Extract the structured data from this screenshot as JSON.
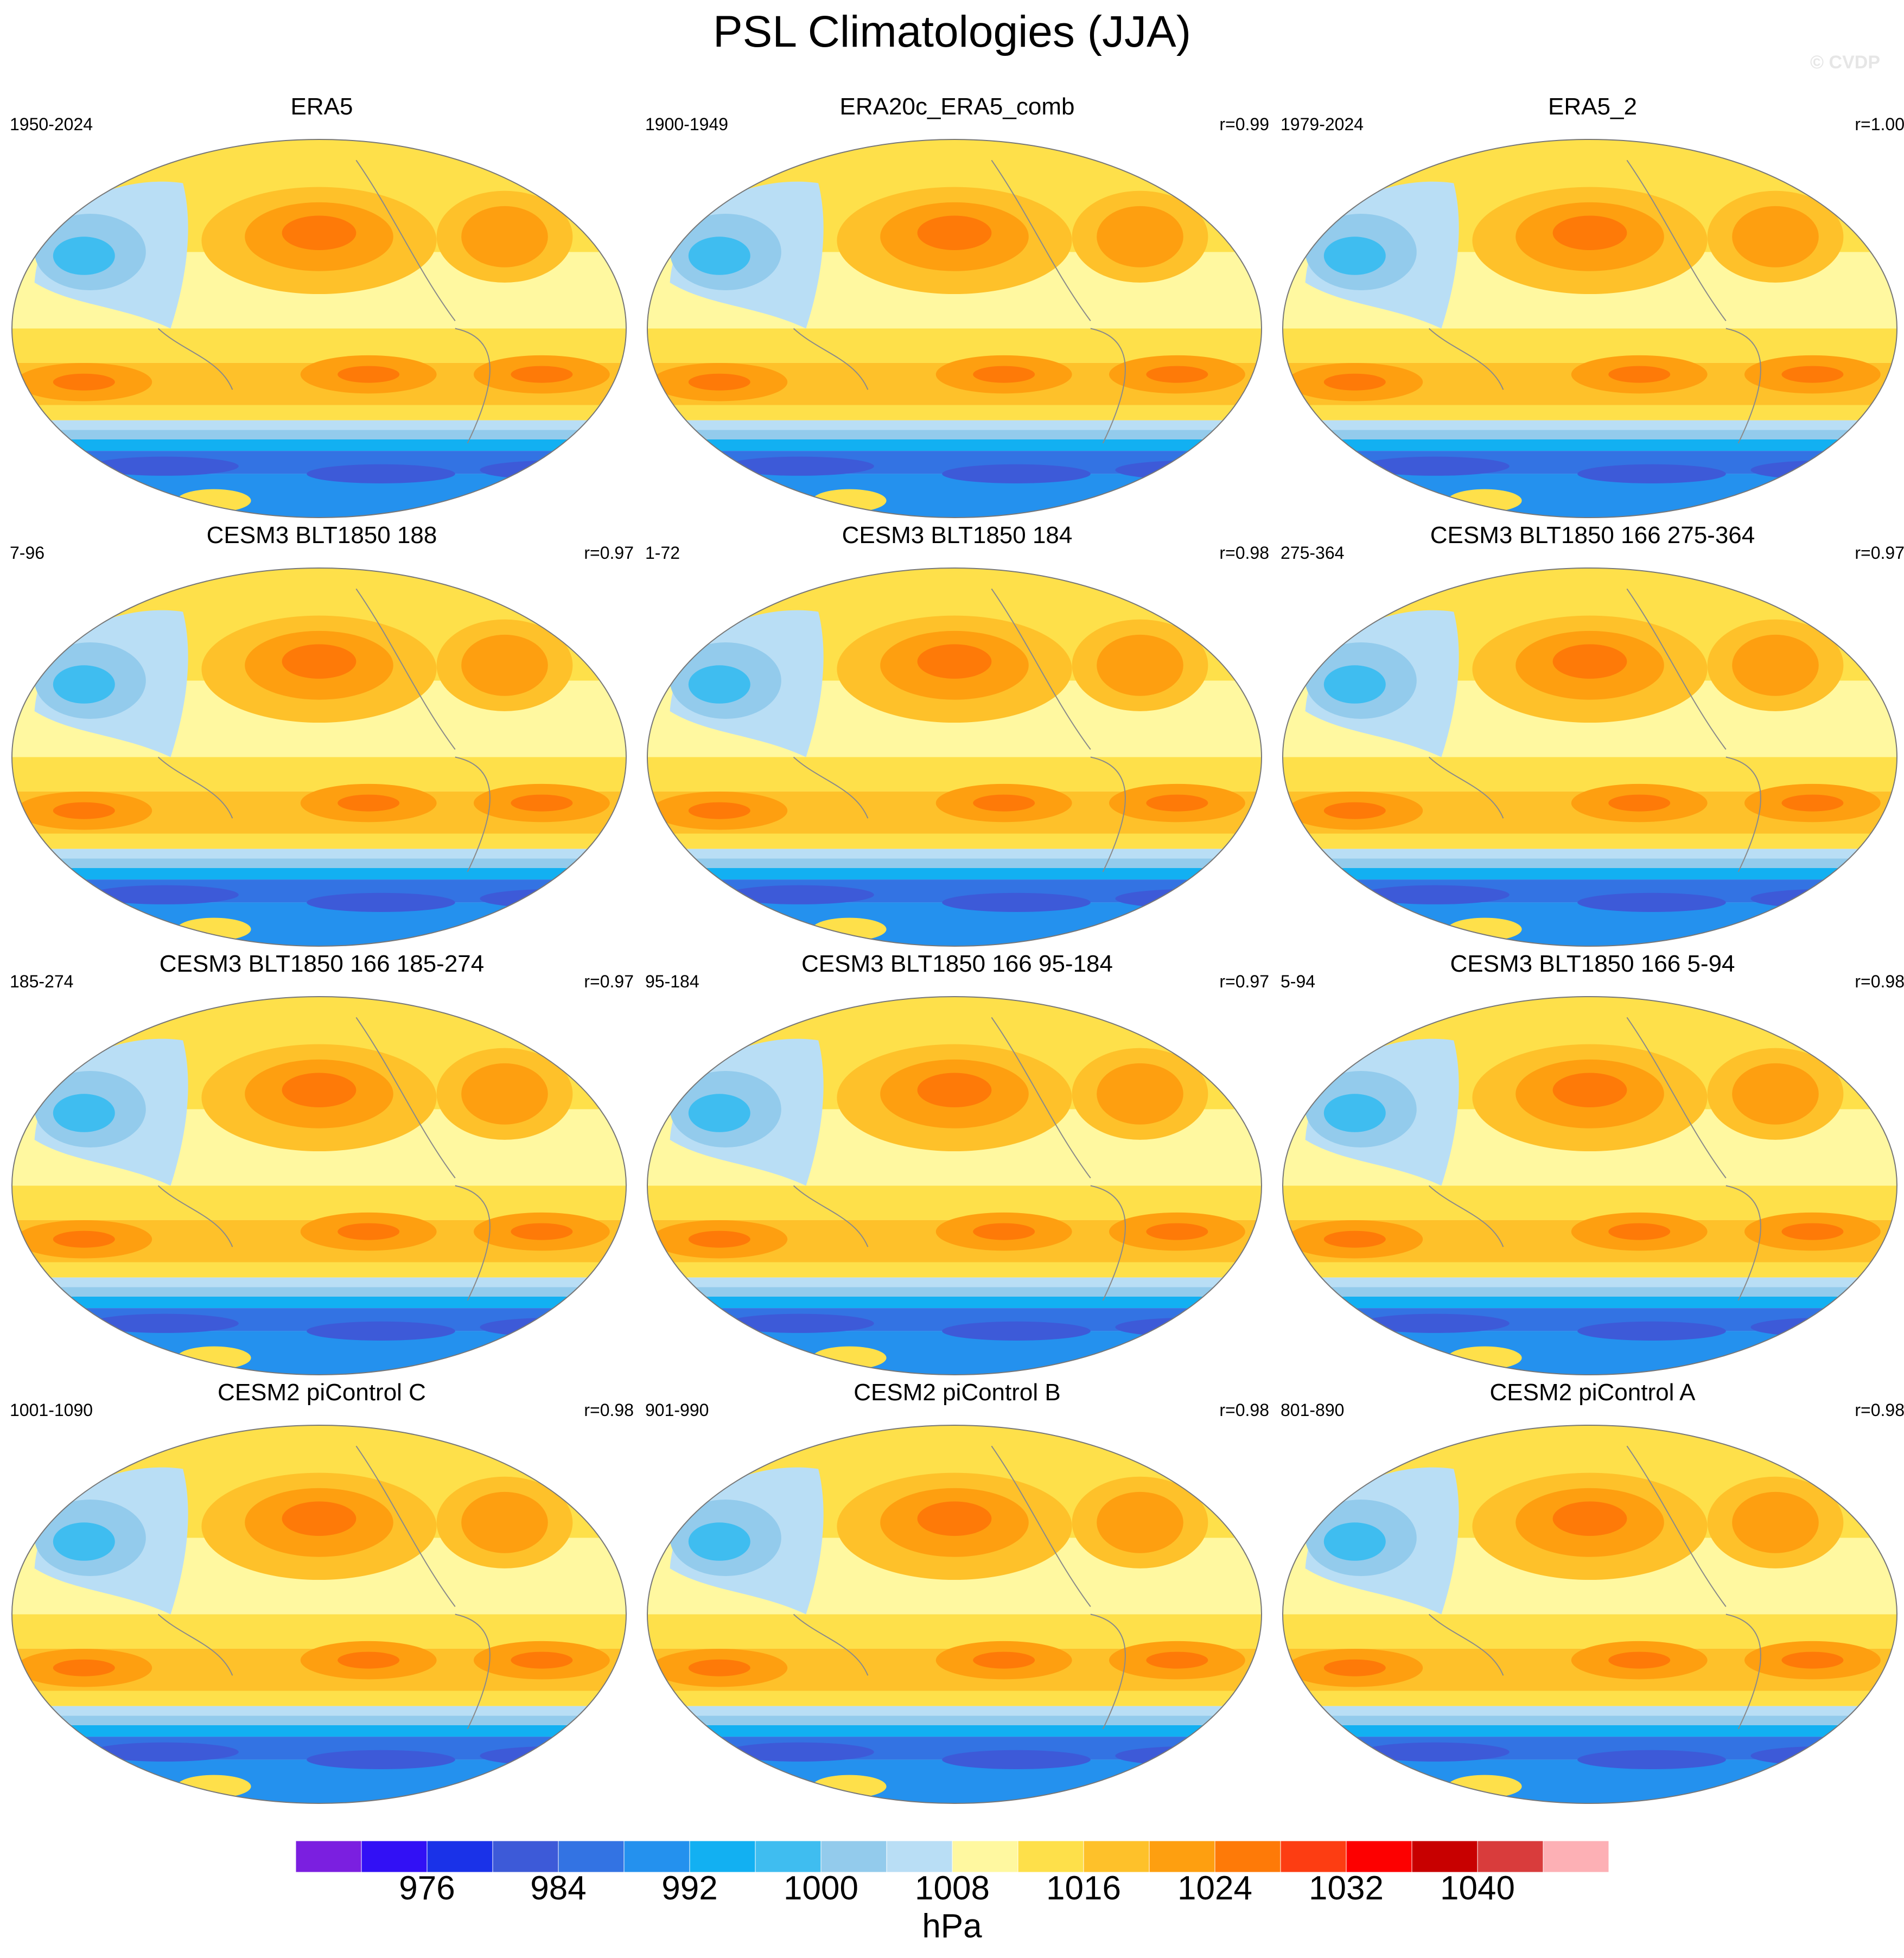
{
  "title": "PSL Climatologies (JJA)",
  "watermark": "© CVDP",
  "chart_data": {
    "type": "heatmap",
    "projection": "Robinson (global, Pacific-centered)",
    "variable": "PSL",
    "season": "JJA",
    "units": "hPa",
    "panels": [
      {
        "name": "ERA5",
        "years": "1950-2024",
        "r": ""
      },
      {
        "name": "ERA20c_ERA5_comb",
        "years": "1900-1949",
        "r": "r=0.99"
      },
      {
        "name": "ERA5_2",
        "years": "1979-2024",
        "r": "r=1.00"
      },
      {
        "name": "CESM3 BLT1850 188",
        "years": "7-96",
        "r": "r=0.97"
      },
      {
        "name": "CESM3 BLT1850 184",
        "years": "1-72",
        "r": "r=0.98"
      },
      {
        "name": "CESM3 BLT1850 166 275-364",
        "years": "275-364",
        "r": "r=0.97"
      },
      {
        "name": "CESM3 BLT1850 166 185-274",
        "years": "185-274",
        "r": "r=0.97"
      },
      {
        "name": "CESM3 BLT1850 166 95-184",
        "years": "95-184",
        "r": "r=0.97"
      },
      {
        "name": "CESM3 BLT1850 166 5-94",
        "years": "5-94",
        "r": "r=0.98"
      },
      {
        "name": "CESM2 piControl C",
        "years": "1001-1090",
        "r": "r=0.98"
      },
      {
        "name": "CESM2 piControl B",
        "years": "901-990",
        "r": "r=0.98"
      },
      {
        "name": "CESM2 piControl A",
        "years": "801-890",
        "r": "r=0.98"
      }
    ],
    "colorbar": {
      "levels": [
        972,
        976,
        980,
        984,
        988,
        992,
        996,
        1000,
        1004,
        1008,
        1012,
        1016,
        1020,
        1024,
        1028,
        1032,
        1036,
        1040,
        1044
      ],
      "tick_labels": [
        "976",
        "984",
        "992",
        "1000",
        "1008",
        "1016",
        "1024",
        "1032",
        "1040"
      ],
      "colors": [
        "#7b1fe0",
        "#3210f5",
        "#1a32e8",
        "#3d5ad8",
        "#3373e3",
        "#2491ee",
        "#12b0f2",
        "#3fbdf0",
        "#93cbec",
        "#b9def5",
        "#fff8a0",
        "#fee04a",
        "#fec12a",
        "#fe9f10",
        "#fe7a08",
        "#fd3d12",
        "#fd0000",
        "#c80000",
        "#d93c3c",
        "#fdb0b5"
      ],
      "label": "hPa"
    }
  }
}
